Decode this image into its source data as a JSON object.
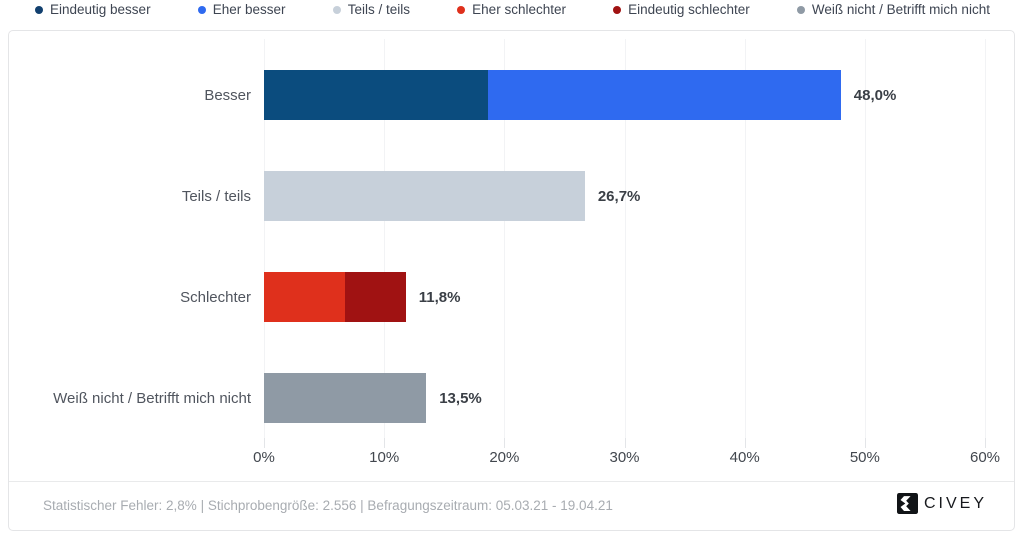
{
  "legend": {
    "items": [
      {
        "label": "Eindeutig besser",
        "color": "#12406f"
      },
      {
        "label": "Eher besser",
        "color": "#2f6af0"
      },
      {
        "label": "Teils / teils",
        "color": "#c7d0da"
      },
      {
        "label": "Eher schlechter",
        "color": "#df301c"
      },
      {
        "label": "Eindeutig schlechter",
        "color": "#a01212"
      },
      {
        "label": "Weiß nicht / Betrifft mich nicht",
        "color": "#8f9aa5"
      }
    ]
  },
  "chart_data": {
    "type": "bar",
    "orientation": "horizontal",
    "stacked": true,
    "title": "",
    "xlabel": "",
    "ylabel": "",
    "xlim": [
      0,
      60
    ],
    "x_ticks": [
      "0%",
      "10%",
      "20%",
      "30%",
      "40%",
      "50%",
      "60%"
    ],
    "x_tick_values": [
      0,
      10,
      20,
      30,
      40,
      50,
      60
    ],
    "grid": true,
    "legend_position": "top",
    "categories": [
      "Besser",
      "Teils / teils",
      "Schlechter",
      "Weiß nicht / Betrifft mich nicht"
    ],
    "bars": [
      {
        "category": "Besser",
        "total": 48.0,
        "total_label": "48,0%",
        "segments": [
          {
            "name": "Eindeutig besser",
            "value": 18.6,
            "color": "#0b4c7e"
          },
          {
            "name": "Eher besser",
            "value": 29.4,
            "color": "#2f6af0"
          }
        ]
      },
      {
        "category": "Teils / teils",
        "total": 26.7,
        "total_label": "26,7%",
        "segments": [
          {
            "name": "Teils / teils",
            "value": 26.7,
            "color": "#c7d0da"
          }
        ]
      },
      {
        "category": "Schlechter",
        "total": 11.8,
        "total_label": "11,8%",
        "segments": [
          {
            "name": "Eher schlechter",
            "value": 6.7,
            "color": "#df301c"
          },
          {
            "name": "Eindeutig schlechter",
            "value": 5.1,
            "color": "#a01212"
          }
        ]
      },
      {
        "category": "Weiß nicht / Betrifft mich nicht",
        "total": 13.5,
        "total_label": "13,5%",
        "segments": [
          {
            "name": "Weiß nicht / Betrifft mich nicht",
            "value": 13.5,
            "color": "#8f9aa5"
          }
        ]
      }
    ]
  },
  "footer": {
    "stats": "Statistischer Fehler: 2,8% | Stichprobengröße: 2.556 | Befragungszeitraum: 05.03.21 - 19.04.21",
    "brand": "CIVEY"
  },
  "colors": {
    "eindeutig_besser": "#0b4c7e",
    "eher_besser": "#2f6af0",
    "teils_teils": "#c7d0da",
    "eher_schlechter": "#df301c",
    "eindeutig_schlechter": "#a01212",
    "weiss_nicht": "#8f9aa5",
    "brand_black": "#17191d"
  }
}
